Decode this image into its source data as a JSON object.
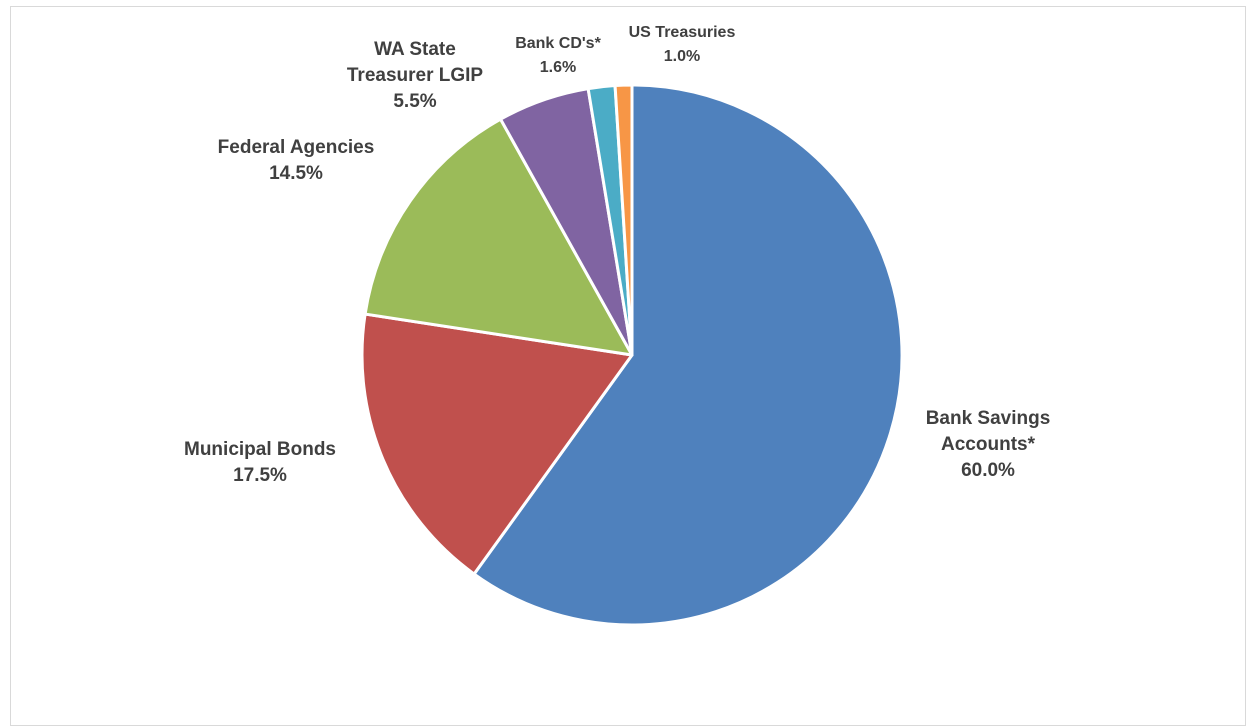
{
  "chart_data": {
    "type": "pie",
    "start_angle_deg": 0,
    "direction": "clockwise",
    "slices": [
      {
        "label": "Bank Savings Accounts*",
        "label_lines": [
          "Bank Savings",
          "Accounts*"
        ],
        "value": 60.0,
        "value_text": "60.0%",
        "color": "#4F81BD"
      },
      {
        "label": "Municipal Bonds",
        "label_lines": [
          "Municipal Bonds"
        ],
        "value": 17.5,
        "value_text": "17.5%",
        "color": "#C0504D"
      },
      {
        "label": "Federal Agencies",
        "label_lines": [
          "Federal Agencies"
        ],
        "value": 14.5,
        "value_text": "14.5%",
        "color": "#9BBB59"
      },
      {
        "label": "WA State Treasurer LGIP",
        "label_lines": [
          "WA State",
          "Treasurer LGIP"
        ],
        "value": 5.5,
        "value_text": "5.5%",
        "color": "#8064A2"
      },
      {
        "label": "Bank CD's*",
        "label_lines": [
          "Bank CD's*"
        ],
        "value": 1.6,
        "value_text": "1.6%",
        "color": "#4BACC6"
      },
      {
        "label": "US Treasuries",
        "label_lines": [
          "US Treasuries"
        ],
        "value": 1.0,
        "value_text": "1.0%",
        "color": "#F79646"
      }
    ]
  }
}
